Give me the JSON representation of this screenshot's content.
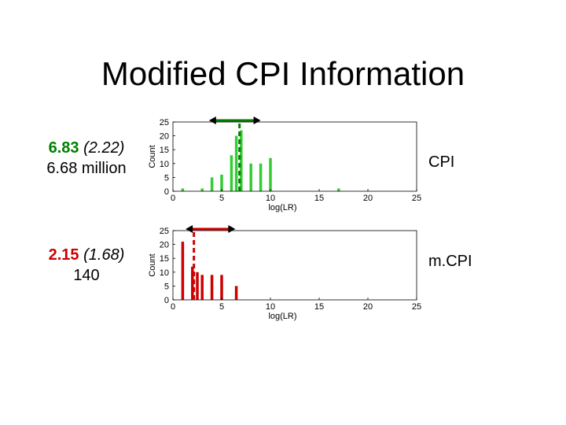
{
  "title": "Modified CPI Information",
  "rows": [
    {
      "stat_bold": "6.83",
      "stat_paren": "(2.22)",
      "stat_line2": "6.68 million",
      "bold_color": "#008000",
      "label": "CPI"
    },
    {
      "stat_bold": "2.15",
      "stat_paren": "(1.68)",
      "stat_line2": "140",
      "bold_color": "#cc0000",
      "label": "m.CPI"
    }
  ],
  "chart_data": [
    {
      "type": "bar",
      "xlabel": "log(LR)",
      "ylabel": "Count",
      "xlim": [
        0,
        25
      ],
      "ylim": [
        0,
        25
      ],
      "xticks": [
        0,
        5,
        10,
        15,
        20,
        25
      ],
      "yticks": [
        0,
        5,
        10,
        15,
        20,
        25
      ],
      "bar_color": "#33cc33",
      "marker_color": "#007a00",
      "x": [
        1,
        3,
        4,
        5,
        6,
        6.5,
        7,
        8,
        9,
        10,
        17
      ],
      "values": [
        1,
        1,
        5,
        6,
        13,
        20,
        22,
        10,
        10,
        12,
        1
      ],
      "marker_x": 6.83,
      "range": [
        3.7,
        9.0
      ]
    },
    {
      "type": "bar",
      "xlabel": "log(LR)",
      "ylabel": "Count",
      "xlim": [
        0,
        25
      ],
      "ylim": [
        0,
        25
      ],
      "xticks": [
        0,
        5,
        10,
        15,
        20,
        25
      ],
      "yticks": [
        0,
        5,
        10,
        15,
        20,
        25
      ],
      "bar_color": "#cc0000",
      "marker_color": "#cc0000",
      "x": [
        1,
        2,
        2.5,
        3,
        4,
        5,
        6.5
      ],
      "values": [
        21,
        12,
        10,
        9,
        9,
        9,
        5
      ],
      "marker_x": 2.15,
      "range": [
        1.3,
        6.4
      ]
    }
  ]
}
